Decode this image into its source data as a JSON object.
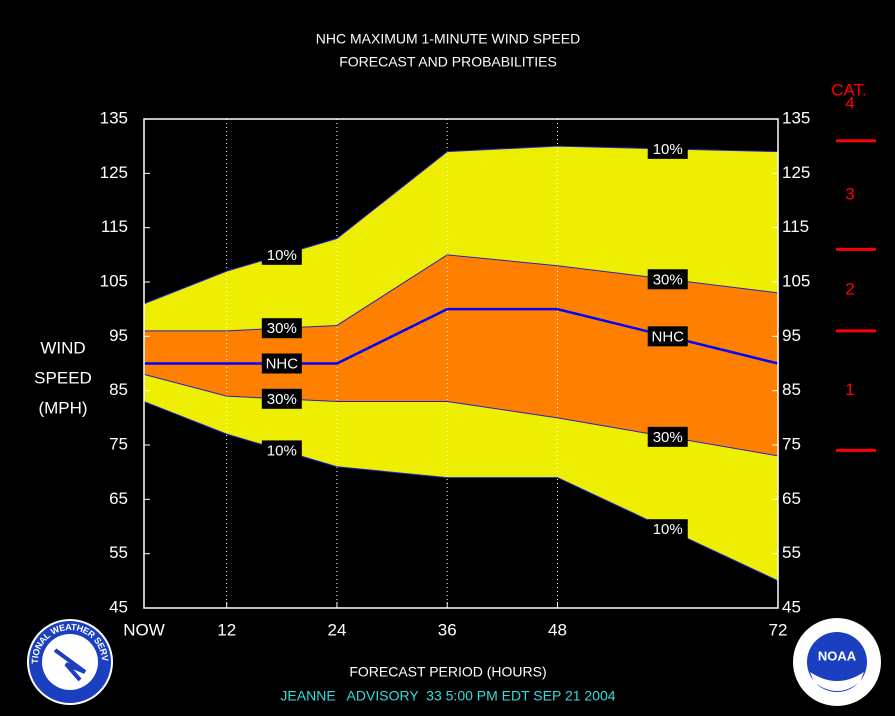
{
  "chart_data": {
    "type": "band-line",
    "title": [
      "NHC MAXIMUM 1-MINUTE WIND SPEED",
      "FORECAST AND PROBABILITIES"
    ],
    "y_label": [
      "WIND",
      "SPEED",
      "(MPH)"
    ],
    "x_label": "FORECAST PERIOD (HOURS)",
    "footer": "JEANNE   ADVISORY  33 5:00 PM EDT SEP 21 2004",
    "x": [
      3,
      12,
      24,
      36,
      48,
      72
    ],
    "xlim": [
      3,
      72
    ],
    "xticks": [
      {
        "value": 3,
        "label": "NOW"
      },
      12,
      24,
      36,
      48,
      72
    ],
    "xgrid": true,
    "ylim": [
      45,
      135
    ],
    "yticks": [
      45,
      55,
      65,
      75,
      85,
      95,
      105,
      115,
      125,
      135
    ],
    "y2lim": [
      45,
      135
    ],
    "y2ticks": [
      45,
      55,
      65,
      75,
      85,
      95,
      105,
      115,
      125,
      135
    ],
    "series": [
      {
        "name": "10%",
        "color": "#2222cc",
        "band_color": "#eeee00",
        "values": [
          101,
          107,
          113,
          129,
          130,
          129
        ]
      },
      {
        "name": "30%",
        "color": "#2222cc",
        "band_color": "#ff8000",
        "values": [
          96,
          96,
          97,
          110,
          108,
          103
        ]
      },
      {
        "name": "NHC",
        "color": "#0000ff",
        "values": [
          90,
          90,
          90,
          100,
          100,
          90
        ]
      },
      {
        "name": "30%",
        "color": "#2222cc",
        "band_color": "#ff8000",
        "values": [
          88,
          84,
          83,
          83,
          80,
          73
        ]
      },
      {
        "name": "10%",
        "color": "#2222cc",
        "band_color": "#eeee00",
        "values": [
          83,
          77,
          71,
          69,
          69,
          50
        ]
      }
    ],
    "category_scale": {
      "title": "CAT.",
      "color": "#ff0000",
      "thresholds": [
        74,
        96,
        111,
        131
      ],
      "labels": [
        "1",
        "2",
        "3",
        "4"
      ]
    }
  },
  "logos": {
    "left": "NATIONAL WEATHER SERVICE",
    "right": "NOAA"
  }
}
